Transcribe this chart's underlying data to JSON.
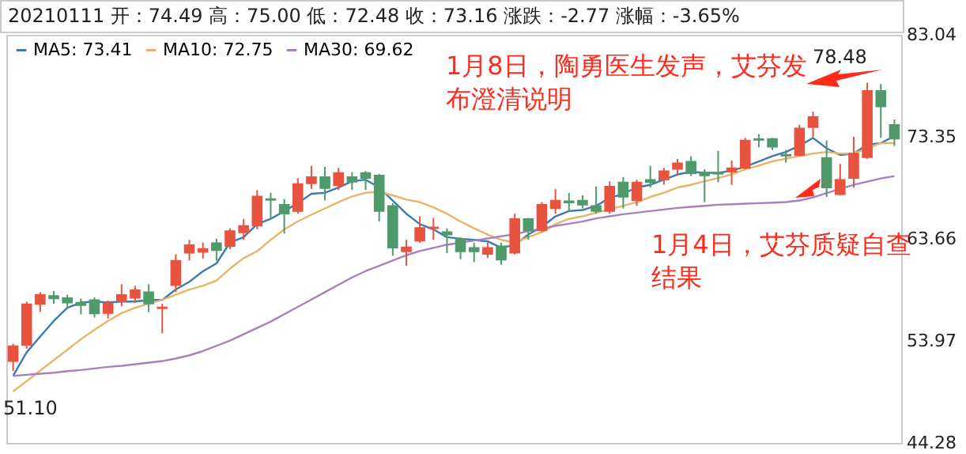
{
  "chart_data": {
    "type": "candlestick",
    "title": "20210111 开：74.49 高：75.00 低：72.48 收：73.16 涨跌：-2.77 涨幅：-3.65%",
    "categories": [
      null,
      null,
      null,
      null,
      null,
      null,
      null,
      null,
      null,
      null,
      null,
      null,
      null,
      null,
      null,
      null,
      null,
      null,
      null,
      null,
      null,
      null,
      null,
      null,
      null,
      null,
      null,
      null,
      null,
      null,
      null,
      null,
      null,
      null,
      null,
      null,
      null,
      null,
      null,
      null,
      null,
      null,
      null,
      null,
      null,
      null,
      null,
      null,
      null,
      null,
      null,
      null,
      null,
      null,
      null,
      null,
      null,
      null,
      null,
      null,
      null,
      null,
      null,
      null,
      null,
      null
    ],
    "ohlc": [
      [
        52.04,
        53.7,
        51.1,
        53.48
      ],
      [
        53.58,
        57.7,
        53.23,
        57.46
      ],
      [
        57.46,
        58.6,
        56.71,
        58.35
      ],
      [
        58.25,
        58.7,
        57.5,
        58.0
      ],
      [
        58.05,
        58.35,
        57.1,
        57.6
      ],
      [
        57.6,
        58.0,
        56.5,
        57.35
      ],
      [
        57.85,
        58.1,
        56.2,
        56.56
      ],
      [
        56.6,
        57.8,
        56.1,
        57.55
      ],
      [
        57.71,
        59.35,
        57.25,
        58.35
      ],
      [
        58.05,
        59.2,
        57.6,
        58.8
      ],
      [
        58.6,
        59.35,
        56.7,
        57.5
      ],
      [
        57.06,
        57.5,
        54.7,
        57.16
      ],
      [
        59.25,
        62.2,
        58.6,
        61.59
      ],
      [
        62.33,
        63.57,
        61.6,
        63.07
      ],
      [
        62.42,
        63.3,
        61.8,
        62.72
      ],
      [
        63.27,
        63.67,
        61.6,
        62.57
      ],
      [
        62.97,
        64.66,
        62.7,
        64.41
      ],
      [
        64.26,
        65.55,
        63.57,
        64.9
      ],
      [
        64.9,
        68.29,
        64.56,
        67.69
      ],
      [
        67.45,
        68.04,
        65.55,
        67.35
      ],
      [
        66.9,
        67.45,
        64.16,
        66.05
      ],
      [
        66.3,
        69.43,
        66.05,
        68.88
      ],
      [
        68.93,
        70.6,
        68.4,
        69.53
      ],
      [
        69.53,
        70.5,
        67.3,
        68.48
      ],
      [
        68.73,
        70.4,
        68.3,
        69.93
      ],
      [
        69.53,
        70.0,
        68.3,
        69.08
      ],
      [
        69.93,
        70.1,
        68.3,
        69.43
      ],
      [
        69.68,
        69.83,
        65.3,
        66.3
      ],
      [
        66.8,
        67.05,
        62.07,
        62.82
      ],
      [
        62.47,
        63.57,
        61.1,
        62.87
      ],
      [
        63.47,
        65.8,
        63.3,
        64.71
      ],
      [
        64.66,
        65.65,
        63.57,
        64.76
      ],
      [
        64.31,
        64.66,
        62.3,
        64.06
      ],
      [
        63.67,
        63.82,
        61.72,
        62.47
      ],
      [
        62.82,
        63.3,
        61.45,
        62.47
      ],
      [
        62.22,
        63.3,
        61.85,
        62.82
      ],
      [
        62.97,
        63.3,
        61.2,
        61.67
      ],
      [
        62.33,
        66.05,
        62.17,
        65.56
      ],
      [
        65.56,
        65.65,
        63.57,
        64.46
      ],
      [
        64.46,
        67.15,
        64.31,
        66.9
      ],
      [
        66.55,
        68.39,
        66.05,
        67.3
      ],
      [
        67.25,
        68.0,
        66.3,
        67.1
      ],
      [
        67.3,
        67.8,
        66.55,
        66.9
      ],
      [
        66.8,
        68.64,
        66.05,
        66.3
      ],
      [
        66.3,
        69.13,
        66.05,
        68.64
      ],
      [
        69.03,
        69.53,
        66.55,
        67.64
      ],
      [
        67.3,
        69.28,
        66.8,
        69.03
      ],
      [
        69.28,
        70.6,
        68.53,
        69.03
      ],
      [
        69.28,
        70.4,
        68.8,
        70.1
      ],
      [
        70.3,
        71.25,
        69.78,
        70.85
      ],
      [
        71.0,
        71.5,
        69.63,
        69.88
      ],
      [
        69.93,
        70.28,
        67.15,
        69.68
      ],
      [
        69.93,
        72.02,
        69.03,
        69.83
      ],
      [
        70.03,
        71.1,
        68.78,
        70.38
      ],
      [
        70.38,
        73.25,
        70.28,
        73.0
      ],
      [
        73.15,
        73.6,
        72.35,
        73.05
      ],
      [
        73.15,
        73.25,
        72.1,
        72.4
      ],
      [
        71.65,
        72.1,
        70.9,
        71.55
      ],
      [
        71.6,
        74.5,
        71.5,
        74.15
      ],
      [
        74.25,
        75.74,
        73.35,
        75.24
      ],
      [
        71.36,
        73.0,
        67.64,
        68.53
      ],
      [
        67.89,
        70.78,
        67.79,
        69.28
      ],
      [
        69.43,
        73.35,
        68.53,
        71.76
      ],
      [
        71.41,
        78.48,
        71.26,
        77.72
      ],
      [
        77.72,
        78.37,
        73.25,
        76.23
      ],
      [
        74.49,
        75.0,
        72.48,
        73.16
      ]
    ],
    "colors": [
      "#e8533f",
      "#e8533f",
      "#e8533f",
      "#4f9a6a",
      "#4f9a6a",
      "#4f9a6a",
      "#4f9a6a",
      "#e8533f",
      "#e8533f",
      "#e8533f",
      "#4f9a6a",
      "#e8533f",
      "#e8533f",
      "#e8533f",
      "#e8533f",
      "#4f9a6a",
      "#e8533f",
      "#e8533f",
      "#e8533f",
      "#4f9a6a",
      "#4f9a6a",
      "#e8533f",
      "#e8533f",
      "#4f9a6a",
      "#e8533f",
      "#4f9a6a",
      "#4f9a6a",
      "#4f9a6a",
      "#4f9a6a",
      "#e8533f",
      "#e8533f",
      "#e8533f",
      "#4f9a6a",
      "#4f9a6a",
      "#4f9a6a",
      "#e8533f",
      "#4f9a6a",
      "#e8533f",
      "#4f9a6a",
      "#e8533f",
      "#e8533f",
      "#4f9a6a",
      "#4f9a6a",
      "#4f9a6a",
      "#e8533f",
      "#4f9a6a",
      "#e8533f",
      "#4f9a6a",
      "#e8533f",
      "#e8533f",
      "#4f9a6a",
      "#4f9a6a",
      "#4f9a6a",
      "#e8533f",
      "#e8533f",
      "#4f9a6a",
      "#4f9a6a",
      "#4f9a6a",
      "#e8533f",
      "#e8533f",
      "#4f9a6a",
      "#e8533f",
      "#e8533f",
      "#e8533f",
      "#4f9a6a",
      "#4f9a6a"
    ],
    "series": [
      {
        "name": "MA5: 73.41",
        "type": "line",
        "color": "#3d7ab0",
        "values": [
          50.65,
          52.89,
          54.38,
          55.87,
          57.11,
          57.61,
          57.71,
          57.61,
          57.71,
          57.71,
          57.86,
          57.86,
          58.85,
          59.59,
          60.58,
          61.33,
          63.32,
          63.82,
          65.06,
          65.56,
          66.3,
          67.05,
          67.94,
          68.04,
          68.54,
          69.13,
          69.28,
          68.54,
          67.3,
          66.05,
          65.06,
          64.56,
          63.82,
          63.67,
          63.57,
          63.42,
          62.82,
          63.07,
          64.07,
          64.81,
          65.8,
          66.3,
          66.4,
          66.8,
          67.54,
          67.94,
          68.54,
          68.79,
          69.28,
          69.78,
          70.03,
          69.93,
          69.93,
          70.13,
          70.52,
          71.02,
          71.52,
          71.91,
          72.51,
          73.25,
          72.26,
          71.62,
          71.76,
          72.61,
          72.76,
          73.41
        ]
      },
      {
        "name": "MA10: 72.75",
        "type": "line",
        "color": "#e8b46a",
        "values": [
          49.16,
          50.15,
          51.15,
          52.14,
          53.13,
          54.13,
          55.02,
          55.87,
          56.61,
          57.11,
          57.51,
          57.86,
          58.35,
          58.85,
          59.2,
          59.7,
          60.84,
          61.83,
          62.48,
          63.57,
          64.56,
          65.31,
          65.95,
          66.55,
          67.15,
          67.69,
          68.04,
          68.14,
          67.79,
          67.39,
          67.15,
          66.65,
          66.05,
          65.31,
          64.66,
          64.06,
          63.57,
          63.32,
          63.82,
          64.31,
          65.06,
          65.56,
          65.8,
          66.15,
          66.45,
          66.8,
          67.15,
          67.64,
          68.04,
          68.54,
          68.79,
          69.13,
          69.43,
          69.78,
          70.28,
          70.62,
          71.02,
          71.27,
          71.52,
          71.76,
          71.91,
          71.76,
          71.76,
          72.26,
          72.76,
          72.75
        ]
      },
      {
        "name": "MA30: 69.62",
        "type": "line",
        "color": "#a97fc4",
        "values": [
          50.65,
          50.75,
          50.85,
          50.95,
          51.1,
          51.2,
          51.35,
          51.5,
          51.6,
          51.75,
          51.9,
          52.05,
          52.3,
          52.6,
          53.0,
          53.5,
          54.0,
          54.6,
          55.2,
          55.8,
          56.5,
          57.2,
          57.9,
          58.6,
          59.3,
          60.0,
          60.6,
          61.1,
          61.6,
          62.1,
          62.5,
          62.8,
          63.1,
          63.3,
          63.5,
          63.7,
          63.9,
          64.1,
          64.4,
          64.6,
          64.9,
          65.1,
          65.3,
          65.6,
          65.8,
          66.0,
          66.15,
          66.3,
          66.45,
          66.6,
          66.7,
          66.8,
          66.9,
          66.95,
          67.0,
          67.05,
          67.1,
          67.15,
          67.3,
          67.6,
          68.0,
          68.4,
          68.8,
          69.1,
          69.4,
          69.62
        ]
      }
    ],
    "ylim": [
      44.28,
      83.04
    ],
    "yticks": [
      83.04,
      73.35,
      63.66,
      53.97,
      44.28
    ],
    "tick_labels": "y",
    "legend": "top left",
    "annotations": [
      "51.10",
      "78.48",
      "1月8日，陶勇医生发声，艾芬发布澄清说明",
      "1月4日，艾芬质疑自查结果"
    ]
  }
}
